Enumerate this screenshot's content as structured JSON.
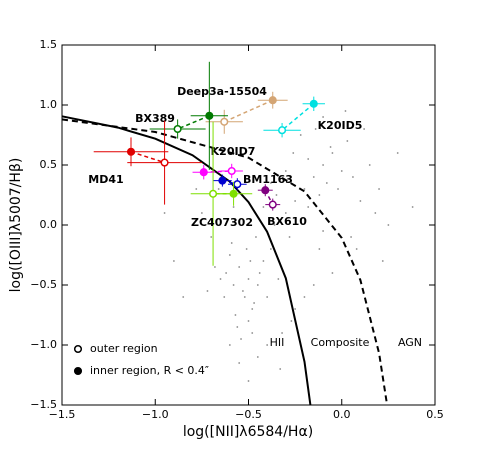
{
  "chart_data": {
    "type": "scatter",
    "xlabel": "log([NII]λ6584/Hα)",
    "ylabel": "log([OIII]λ5007/Hβ)",
    "xlim": [
      -1.5,
      0.5
    ],
    "ylim": [
      -1.5,
      1.5
    ],
    "xticks": [
      {
        "value": -1.5,
        "label": "−1.5"
      },
      {
        "value": -1.0,
        "label": "−1.0"
      },
      {
        "value": -0.5,
        "label": "−0.5"
      },
      {
        "value": 0.0,
        "label": "0.0"
      },
      0.5
    ],
    "yticks": [
      {
        "value": -1.5,
        "label": "−1.5"
      },
      {
        "value": -1.0,
        "label": "−1.0"
      },
      {
        "value": -0.5,
        "label": "−0.5"
      },
      {
        "value": 0.0,
        "label": "0.0"
      },
      0.5,
      {
        "value": 1.0,
        "label": "1.0"
      },
      1.5
    ],
    "region_labels": [
      "HII",
      "Composite",
      "AGN"
    ],
    "legend": [
      {
        "label": "outer region",
        "filled": false
      },
      {
        "label": "inner region, R < 0.4″",
        "filled": true
      }
    ],
    "background_points": {
      "color": "#8a8a8a",
      "x": [
        -0.62,
        -0.58,
        -0.55,
        -0.52,
        -0.5,
        -0.48,
        -0.6,
        -0.57,
        -0.53,
        -0.49,
        -0.45,
        -0.63,
        -0.59,
        -0.56,
        -0.51,
        -0.47,
        -0.44,
        -0.54,
        -0.5,
        -0.46,
        -0.42,
        -0.65,
        -0.61,
        -0.4,
        -0.38,
        -0.36,
        -0.34,
        -0.3,
        -0.28,
        -0.25,
        -0.22,
        -0.2,
        -0.18,
        -0.15,
        -0.12,
        -0.1,
        -0.08,
        -0.05,
        -0.02,
        0.0,
        0.03,
        0.06,
        -0.3,
        -0.26,
        -0.22,
        -0.18,
        -0.14,
        -0.1,
        -0.06,
        -0.35,
        -0.7,
        -0.75,
        -0.8,
        -0.68,
        -0.72,
        -0.45,
        -0.4,
        -0.33,
        -0.27,
        -0.2,
        -0.12,
        0.1,
        0.15,
        0.2,
        0.25,
        0.3,
        0.38,
        -0.9,
        -0.85,
        -0.95,
        -0.78,
        -0.5,
        -0.6,
        -0.55,
        -0.42,
        -0.38,
        0.05,
        0.12,
        0.18,
        -0.05,
        -0.15,
        -0.25,
        -0.48,
        -0.58,
        -0.66,
        0.02,
        0.08,
        -0.32,
        -0.1,
        0.22
      ],
      "y": [
        -0.4,
        -0.5,
        -0.35,
        -0.6,
        -0.45,
        -0.7,
        -0.25,
        -0.75,
        -0.55,
        -0.3,
        -0.5,
        -0.6,
        -0.15,
        -0.85,
        -0.2,
        -0.65,
        -0.4,
        -0.95,
        -0.8,
        -0.1,
        -0.3,
        -0.45,
        0.05,
        -0.6,
        -0.2,
        0.0,
        -0.45,
        0.1,
        -0.1,
        0.2,
        0.05,
        0.3,
        0.15,
        0.4,
        0.25,
        0.5,
        0.35,
        0.6,
        0.3,
        0.45,
        0.7,
        0.4,
        0.45,
        0.6,
        0.75,
        0.55,
        0.8,
        0.9,
        0.65,
        0.25,
        -0.1,
        0.1,
        0.0,
        -0.35,
        -0.55,
        -1.1,
        -1.0,
        -1.2,
        -0.8,
        -0.6,
        -0.2,
        0.2,
        0.5,
        0.3,
        0.0,
        0.6,
        0.15,
        -0.3,
        -0.6,
        0.1,
        0.3,
        -1.3,
        -1.0,
        -1.15,
        0.15,
        0.35,
        -0.1,
        0.8,
        0.1,
        -0.4,
        -0.5,
        -0.7,
        -0.9,
        0.15,
        0.3,
        0.95,
        -0.2,
        -0.9,
        -0.05,
        -0.3
      ]
    },
    "curves": [
      {
        "style": "solid",
        "x": [
          -1.5,
          -1.2,
          -1.0,
          -0.8,
          -0.6,
          -0.5,
          -0.4,
          -0.3,
          -0.2,
          -0.168
        ],
        "y": [
          0.906,
          0.812,
          0.719,
          0.582,
          0.362,
          0.191,
          -0.056,
          -0.443,
          -1.14,
          -1.5
        ]
      },
      {
        "style": "dashed",
        "x": [
          -1.5,
          -1.0,
          -0.5,
          -0.2,
          0.0,
          0.1,
          0.2,
          0.243
        ],
        "y": [
          0.88,
          0.775,
          0.561,
          0.28,
          -0.108,
          -0.459,
          -1.069,
          -1.5
        ]
      }
    ],
    "series": [
      {
        "name": "Deep3a-15504",
        "color": "#d4a574",
        "points": [
          {
            "filled": true,
            "x": -0.37,
            "y": 1.04,
            "xerr": 0.08,
            "yerr": 0.07
          },
          {
            "filled": false,
            "x": -0.63,
            "y": 0.86,
            "xerr": 0.1,
            "yerr": 0.1
          }
        ]
      },
      {
        "name": "K20ID5",
        "color": "#00e0e0",
        "points": [
          {
            "filled": true,
            "x": -0.15,
            "y": 1.01,
            "xerr": 0.06,
            "yerr": 0.06
          },
          {
            "filled": false,
            "x": -0.32,
            "y": 0.79,
            "xerr": 0.1,
            "yerr": 0.06
          }
        ]
      },
      {
        "name": "BX389",
        "color": "#007a00",
        "points": [
          {
            "filled": true,
            "x": -0.71,
            "y": 0.91,
            "xerr": 0.1,
            "yerr": 0.45
          },
          {
            "filled": false,
            "x": -0.88,
            "y": 0.8,
            "xerr": 0.15,
            "yerr": 0.08
          }
        ]
      },
      {
        "name": "MD41",
        "color": "#e00000",
        "points": [
          {
            "filled": true,
            "x": -1.13,
            "y": 0.61,
            "xerr": 0.2,
            "yerr": 0.12
          },
          {
            "filled": false,
            "x": -0.95,
            "y": 0.52,
            "xerr": 0.2,
            "yerr": 0.35
          }
        ]
      },
      {
        "name": "K20ID7",
        "color": "#ff00ff",
        "points": [
          {
            "filled": true,
            "x": -0.74,
            "y": 0.44,
            "xerr": 0.06,
            "yerr": 0.06
          },
          {
            "filled": false,
            "x": -0.59,
            "y": 0.45,
            "xerr": 0.06,
            "yerr": 0.06
          }
        ]
      },
      {
        "name": "BM1163",
        "color": "#0000d0",
        "points": [
          {
            "filled": true,
            "x": -0.64,
            "y": 0.37,
            "xerr": 0.05,
            "yerr": 0.05
          },
          {
            "filled": false,
            "x": -0.56,
            "y": 0.34,
            "xerr": 0.05,
            "yerr": 0.05
          }
        ]
      },
      {
        "name": "ZC407302",
        "color": "#7fdf00",
        "points": [
          {
            "filled": true,
            "x": -0.58,
            "y": 0.26,
            "xerr": 0.1,
            "yerr": 0.1
          },
          {
            "filled": false,
            "x": -0.69,
            "y": 0.26,
            "xerr": 0.12,
            "yerr": 0.6
          }
        ]
      },
      {
        "name": "BX610",
        "color": "#800080",
        "points": [
          {
            "filled": true,
            "x": -0.41,
            "y": 0.29,
            "xerr": 0.04,
            "yerr": 0.05
          },
          {
            "filled": false,
            "x": -0.37,
            "y": 0.17,
            "xerr": 0.04,
            "yerr": 0.05
          }
        ]
      }
    ]
  }
}
